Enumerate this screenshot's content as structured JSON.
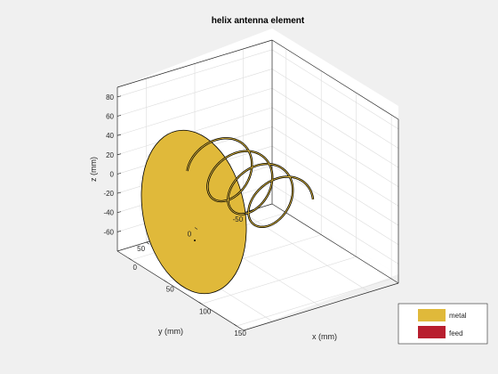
{
  "chart_data": {
    "type": "3d-surface",
    "title": "helix antenna element",
    "xlabel": "x (mm)",
    "ylabel": "y (mm)",
    "zlabel": "z (mm)",
    "xlim": [
      -20,
      160
    ],
    "ylim": [
      -80,
      80
    ],
    "zlim": [
      -80,
      90
    ],
    "x_ticks": [
      0,
      50,
      100,
      150
    ],
    "y_ticks": [
      50,
      0,
      -50
    ],
    "z_ticks": [
      80,
      60,
      40,
      20,
      0,
      -20,
      -40,
      -60
    ],
    "grid": true,
    "legend_position": "bottom-right",
    "legend": [
      {
        "name": "metal",
        "color": "#e0b93a"
      },
      {
        "name": "feed",
        "color": "#b81e2e"
      }
    ],
    "ground_plane": {
      "x": 0,
      "radius": 75
    },
    "helix": {
      "x_start": 8,
      "x_end": 110,
      "radius": 28,
      "turns": 3.5
    }
  }
}
